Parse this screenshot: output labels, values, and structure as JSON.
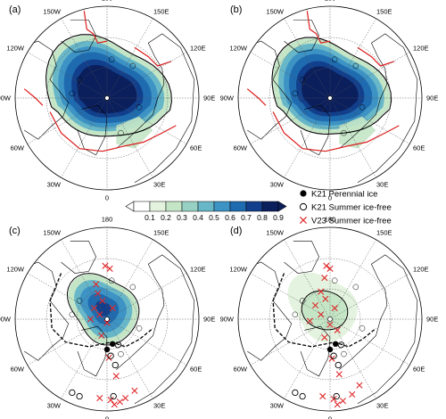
{
  "panels": [
    {
      "label": "(a)"
    },
    {
      "label": "(b)"
    },
    {
      "label": "(c)"
    },
    {
      "label": "(d)"
    }
  ],
  "longitude_labels": {
    "top": "180",
    "upper_left": "150W",
    "upper_right": "150E",
    "left_upper": "120W",
    "right_upper": "120E",
    "left": "90W",
    "right": "90E",
    "left_lower": "60W",
    "right_lower": "60E",
    "lower_left": "30W",
    "lower_right": "30E",
    "bottom": "0"
  },
  "colorbar": {
    "ticks": [
      "0.1",
      "0.2",
      "0.3",
      "0.4",
      "0.5",
      "0.6",
      "0.7",
      "0.8",
      "0.9"
    ],
    "colors": [
      "#ffffff",
      "#e4f3df",
      "#c4e6c7",
      "#97d1c3",
      "#68b7c9",
      "#3d93c4",
      "#1f6bb0",
      "#123f8c",
      "#0b1f5c"
    ]
  },
  "legend": {
    "items": [
      {
        "label": "K21 Perennial ice",
        "marker": "filled-circle"
      },
      {
        "label": "K21 Summer ice-free",
        "marker": "open-circle"
      },
      {
        "label": "V23 Summer ice-free",
        "marker": "red-cross"
      }
    ]
  },
  "colors": {
    "coast": "#000000",
    "edge_red": "#dd1c1c",
    "cross": "#e0282a",
    "grid": "#555555"
  }
}
